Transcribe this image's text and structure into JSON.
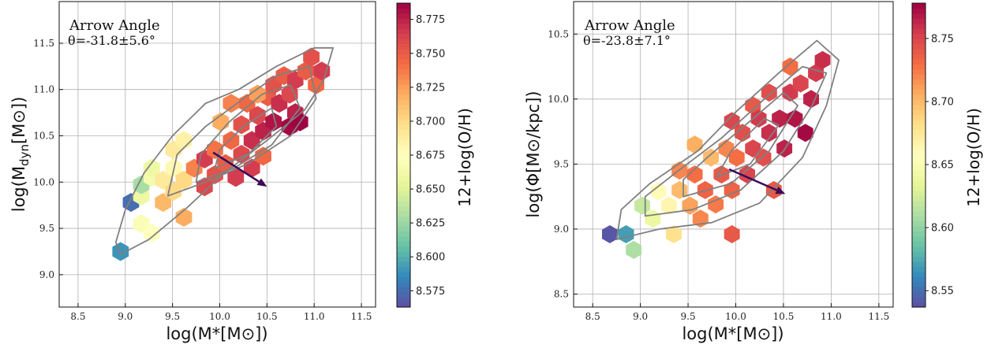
{
  "colors": {
    "contour": "#808080",
    "arrow": "#3b0a5a",
    "grid": "#b0b0b0",
    "colormap": [
      "#5e4fa2",
      "#3288bd",
      "#66c2a5",
      "#abdda4",
      "#e6f598",
      "#ffffbf",
      "#fee08b",
      "#fdae61",
      "#f46d43",
      "#d53e4f",
      "#9e0142"
    ]
  },
  "chart_data": [
    {
      "type": "heatmap",
      "subtype": "hexbin",
      "annotation": {
        "title": "Arrow Angle",
        "value": "θ=-31.8±5.6°"
      },
      "xlabel": "log(M*[M⊙])",
      "ylabel_main": "log(M",
      "ylabel_sub": "dyn",
      "ylabel_rest": "[M⊙])",
      "xlim": [
        8.3,
        11.65
      ],
      "ylim": [
        8.65,
        11.95
      ],
      "xticks": [
        "8.5",
        "9.0",
        "9.5",
        "10.0",
        "10.5",
        "11.0",
        "11.5"
      ],
      "yticks": [
        "9.0",
        "9.5",
        "10.0",
        "10.5",
        "11.0",
        "11.5"
      ],
      "grid": true,
      "colorbar": {
        "label": "12+log(O/H)",
        "range": [
          8.563,
          8.787
        ],
        "ticks": [
          "8.575",
          "8.600",
          "8.625",
          "8.650",
          "8.675",
          "8.700",
          "8.725",
          "8.750",
          "8.775"
        ]
      },
      "arrow": {
        "from": [
          9.93,
          10.32
        ],
        "to": [
          10.5,
          9.95
        ]
      },
      "hexbins": [
        {
          "x": 8.95,
          "y": 9.25,
          "z": 8.59
        },
        {
          "x": 9.06,
          "y": 9.78,
          "z": 8.575
        },
        {
          "x": 9.17,
          "y": 9.55,
          "z": 8.67
        },
        {
          "x": 9.17,
          "y": 9.85,
          "z": 8.66
        },
        {
          "x": 9.17,
          "y": 9.97,
          "z": 8.63
        },
        {
          "x": 9.28,
          "y": 9.45,
          "z": 8.675
        },
        {
          "x": 9.28,
          "y": 10.05,
          "z": 8.665
        },
        {
          "x": 9.28,
          "y": 10.15,
          "z": 8.66
        },
        {
          "x": 9.4,
          "y": 9.78,
          "z": 8.715
        },
        {
          "x": 9.4,
          "y": 10.02,
          "z": 8.69
        },
        {
          "x": 9.51,
          "y": 9.9,
          "z": 8.7
        },
        {
          "x": 9.51,
          "y": 10.15,
          "z": 8.68
        },
        {
          "x": 9.51,
          "y": 10.35,
          "z": 8.69
        },
        {
          "x": 9.62,
          "y": 9.62,
          "z": 8.72
        },
        {
          "x": 9.62,
          "y": 10.02,
          "z": 8.7
        },
        {
          "x": 9.62,
          "y": 10.45,
          "z": 8.685
        },
        {
          "x": 9.73,
          "y": 10.15,
          "z": 8.735
        },
        {
          "x": 9.84,
          "y": 9.95,
          "z": 8.76
        },
        {
          "x": 9.84,
          "y": 10.25,
          "z": 8.765
        },
        {
          "x": 9.95,
          "y": 10.08,
          "z": 8.755
        },
        {
          "x": 9.95,
          "y": 10.35,
          "z": 8.74
        },
        {
          "x": 10.01,
          "y": 10.65,
          "z": 8.72
        },
        {
          "x": 10.06,
          "y": 10.2,
          "z": 8.75
        },
        {
          "x": 10.12,
          "y": 10.45,
          "z": 8.745
        },
        {
          "x": 10.17,
          "y": 10.05,
          "z": 8.765
        },
        {
          "x": 10.23,
          "y": 10.3,
          "z": 8.76
        },
        {
          "x": 10.23,
          "y": 10.62,
          "z": 8.755
        },
        {
          "x": 10.29,
          "y": 10.85,
          "z": 8.745
        },
        {
          "x": 10.34,
          "y": 10.15,
          "z": 8.765
        },
        {
          "x": 10.34,
          "y": 10.45,
          "z": 8.77
        },
        {
          "x": 10.4,
          "y": 10.72,
          "z": 8.76
        },
        {
          "x": 10.46,
          "y": 10.28,
          "z": 8.745
        },
        {
          "x": 10.46,
          "y": 10.55,
          "z": 8.775
        },
        {
          "x": 10.51,
          "y": 10.92,
          "z": 8.75
        },
        {
          "x": 10.57,
          "y": 10.65,
          "z": 8.78
        },
        {
          "x": 10.57,
          "y": 11.05,
          "z": 8.755
        },
        {
          "x": 10.63,
          "y": 10.85,
          "z": 8.77
        },
        {
          "x": 10.68,
          "y": 11.15,
          "z": 8.75
        },
        {
          "x": 10.74,
          "y": 10.6,
          "z": 8.785
        },
        {
          "x": 10.74,
          "y": 10.95,
          "z": 8.76
        },
        {
          "x": 10.8,
          "y": 10.75,
          "z": 8.775
        },
        {
          "x": 10.8,
          "y": 11.1,
          "z": 8.765
        },
        {
          "x": 10.85,
          "y": 10.65,
          "z": 8.787
        },
        {
          "x": 10.91,
          "y": 11.2,
          "z": 8.75
        },
        {
          "x": 10.97,
          "y": 11.35,
          "z": 8.755
        },
        {
          "x": 11.02,
          "y": 11.05,
          "z": 8.745
        },
        {
          "x": 11.08,
          "y": 11.2,
          "z": 8.765
        },
        {
          "x": 10.4,
          "y": 10.95,
          "z": 8.725
        },
        {
          "x": 10.12,
          "y": 10.85,
          "z": 8.735
        }
      ],
      "contours": [
        [
          [
            8.95,
            9.22
          ],
          [
            9.25,
            9.38
          ],
          [
            9.65,
            9.72
          ],
          [
            10.05,
            10.1
          ],
          [
            10.5,
            10.45
          ],
          [
            10.9,
            10.78
          ],
          [
            11.1,
            11.1
          ],
          [
            11.2,
            11.45
          ],
          [
            11.0,
            11.45
          ],
          [
            10.6,
            11.25
          ],
          [
            10.2,
            11.0
          ],
          [
            9.85,
            10.85
          ],
          [
            9.5,
            10.5
          ],
          [
            9.2,
            10.1
          ],
          [
            9.0,
            9.7
          ],
          [
            8.9,
            9.35
          ],
          [
            8.95,
            9.22
          ]
        ],
        [
          [
            9.45,
            9.85
          ],
          [
            9.85,
            10.0
          ],
          [
            10.3,
            10.2
          ],
          [
            10.75,
            10.5
          ],
          [
            11.02,
            10.9
          ],
          [
            10.95,
            11.25
          ],
          [
            10.6,
            11.15
          ],
          [
            10.25,
            10.9
          ],
          [
            9.85,
            10.6
          ],
          [
            9.55,
            10.3
          ],
          [
            9.45,
            9.85
          ]
        ],
        [
          [
            9.75,
            10.0
          ],
          [
            10.15,
            10.15
          ],
          [
            10.55,
            10.4
          ],
          [
            10.85,
            10.8
          ],
          [
            10.75,
            11.05
          ],
          [
            10.45,
            10.95
          ],
          [
            10.1,
            10.65
          ],
          [
            9.8,
            10.3
          ],
          [
            9.75,
            10.0
          ]
        ],
        [
          [
            9.95,
            10.15
          ],
          [
            10.3,
            10.3
          ],
          [
            10.6,
            10.6
          ],
          [
            10.55,
            10.8
          ],
          [
            10.25,
            10.6
          ],
          [
            10.0,
            10.35
          ],
          [
            9.95,
            10.15
          ]
        ]
      ]
    },
    {
      "type": "heatmap",
      "subtype": "hexbin",
      "annotation": {
        "title": "Arrow Angle",
        "value": "θ=-23.8±7.1°"
      },
      "xlabel": "log(M*[M⊙])",
      "ylabel_main": "log(Φ[M⊙/kpc])",
      "ylabel_sub": "",
      "ylabel_rest": "",
      "xlim": [
        8.3,
        11.65
      ],
      "ylim": [
        8.4,
        10.75
      ],
      "xticks": [
        "8.5",
        "9.0",
        "9.5",
        "10.0",
        "10.5",
        "11.0",
        "11.5"
      ],
      "yticks": [
        "8.5",
        "9.0",
        "9.5",
        "10.0",
        "10.5"
      ],
      "grid": true,
      "colorbar": {
        "label": "12+log(O/H)",
        "range": [
          8.537,
          8.778
        ],
        "ticks": [
          "8.55",
          "8.60",
          "8.65",
          "8.70",
          "8.75"
        ]
      },
      "arrow": {
        "from": [
          9.93,
          9.46
        ],
        "to": [
          10.52,
          9.27
        ]
      },
      "hexbins": [
        {
          "x": 8.68,
          "y": 8.96,
          "z": 8.54
        },
        {
          "x": 8.85,
          "y": 8.96,
          "z": 8.57
        },
        {
          "x": 8.93,
          "y": 8.84,
          "z": 8.61
        },
        {
          "x": 9.02,
          "y": 9.18,
          "z": 8.62
        },
        {
          "x": 9.13,
          "y": 9.08,
          "z": 8.64
        },
        {
          "x": 9.19,
          "y": 9.29,
          "z": 8.66
        },
        {
          "x": 9.3,
          "y": 9.18,
          "z": 8.665
        },
        {
          "x": 9.35,
          "y": 8.96,
          "z": 8.68
        },
        {
          "x": 9.41,
          "y": 9.3,
          "z": 8.7
        },
        {
          "x": 9.41,
          "y": 9.45,
          "z": 8.72
        },
        {
          "x": 9.52,
          "y": 9.18,
          "z": 8.71
        },
        {
          "x": 9.57,
          "y": 9.42,
          "z": 8.73
        },
        {
          "x": 9.63,
          "y": 9.08,
          "z": 8.72
        },
        {
          "x": 9.68,
          "y": 9.3,
          "z": 8.735
        },
        {
          "x": 9.74,
          "y": 9.55,
          "z": 8.7
        },
        {
          "x": 9.79,
          "y": 9.19,
          "z": 8.725
        },
        {
          "x": 9.85,
          "y": 9.42,
          "z": 8.74
        },
        {
          "x": 9.9,
          "y": 9.62,
          "z": 8.72
        },
        {
          "x": 9.96,
          "y": 9.3,
          "z": 8.735
        },
        {
          "x": 9.96,
          "y": 9.83,
          "z": 8.75
        },
        {
          "x": 10.01,
          "y": 9.55,
          "z": 8.73
        },
        {
          "x": 10.07,
          "y": 9.74,
          "z": 8.745
        },
        {
          "x": 10.12,
          "y": 9.42,
          "z": 8.75
        },
        {
          "x": 10.18,
          "y": 9.62,
          "z": 8.75
        },
        {
          "x": 10.18,
          "y": 9.95,
          "z": 8.74
        },
        {
          "x": 10.24,
          "y": 9.85,
          "z": 8.755
        },
        {
          "x": 10.29,
          "y": 9.55,
          "z": 8.745
        },
        {
          "x": 10.35,
          "y": 9.74,
          "z": 8.76
        },
        {
          "x": 10.35,
          "y": 10.05,
          "z": 8.745
        },
        {
          "x": 10.4,
          "y": 9.3,
          "z": 8.74
        },
        {
          "x": 10.46,
          "y": 9.85,
          "z": 8.765
        },
        {
          "x": 10.51,
          "y": 9.62,
          "z": 8.765
        },
        {
          "x": 10.57,
          "y": 10.05,
          "z": 8.755
        },
        {
          "x": 10.57,
          "y": 10.25,
          "z": 8.73
        },
        {
          "x": 10.62,
          "y": 9.85,
          "z": 8.77
        },
        {
          "x": 10.68,
          "y": 10.12,
          "z": 8.75
        },
        {
          "x": 10.73,
          "y": 9.74,
          "z": 8.775
        },
        {
          "x": 10.79,
          "y": 10.0,
          "z": 8.765
        },
        {
          "x": 10.84,
          "y": 10.2,
          "z": 8.755
        },
        {
          "x": 10.91,
          "y": 10.3,
          "z": 8.76
        },
        {
          "x": 9.57,
          "y": 9.65,
          "z": 8.705
        },
        {
          "x": 9.96,
          "y": 8.96,
          "z": 8.74
        }
      ],
      "contours": [
        [
          [
            8.75,
            8.92
          ],
          [
            9.2,
            9.0
          ],
          [
            9.75,
            9.05
          ],
          [
            10.25,
            9.2
          ],
          [
            10.7,
            9.55
          ],
          [
            10.95,
            9.95
          ],
          [
            11.08,
            10.3
          ],
          [
            10.85,
            10.45
          ],
          [
            10.45,
            10.2
          ],
          [
            10.0,
            9.9
          ],
          [
            9.6,
            9.6
          ],
          [
            9.1,
            9.35
          ],
          [
            8.8,
            9.15
          ],
          [
            8.75,
            8.92
          ]
        ],
        [
          [
            9.05,
            9.1
          ],
          [
            9.55,
            9.15
          ],
          [
            10.05,
            9.3
          ],
          [
            10.5,
            9.6
          ],
          [
            10.8,
            9.95
          ],
          [
            10.95,
            10.2
          ],
          [
            10.7,
            10.25
          ],
          [
            10.3,
            10.0
          ],
          [
            9.85,
            9.7
          ],
          [
            9.4,
            9.45
          ],
          [
            9.05,
            9.25
          ],
          [
            9.05,
            9.1
          ]
        ],
        [
          [
            9.45,
            9.25
          ],
          [
            9.95,
            9.35
          ],
          [
            10.35,
            9.6
          ],
          [
            10.65,
            9.95
          ],
          [
            10.5,
            10.05
          ],
          [
            10.1,
            9.8
          ],
          [
            9.7,
            9.55
          ],
          [
            9.45,
            9.38
          ],
          [
            9.45,
            9.25
          ]
        ],
        [
          [
            9.8,
            9.4
          ],
          [
            10.15,
            9.5
          ],
          [
            10.45,
            9.8
          ],
          [
            10.3,
            9.85
          ],
          [
            9.95,
            9.6
          ],
          [
            9.8,
            9.4
          ]
        ]
      ]
    }
  ]
}
